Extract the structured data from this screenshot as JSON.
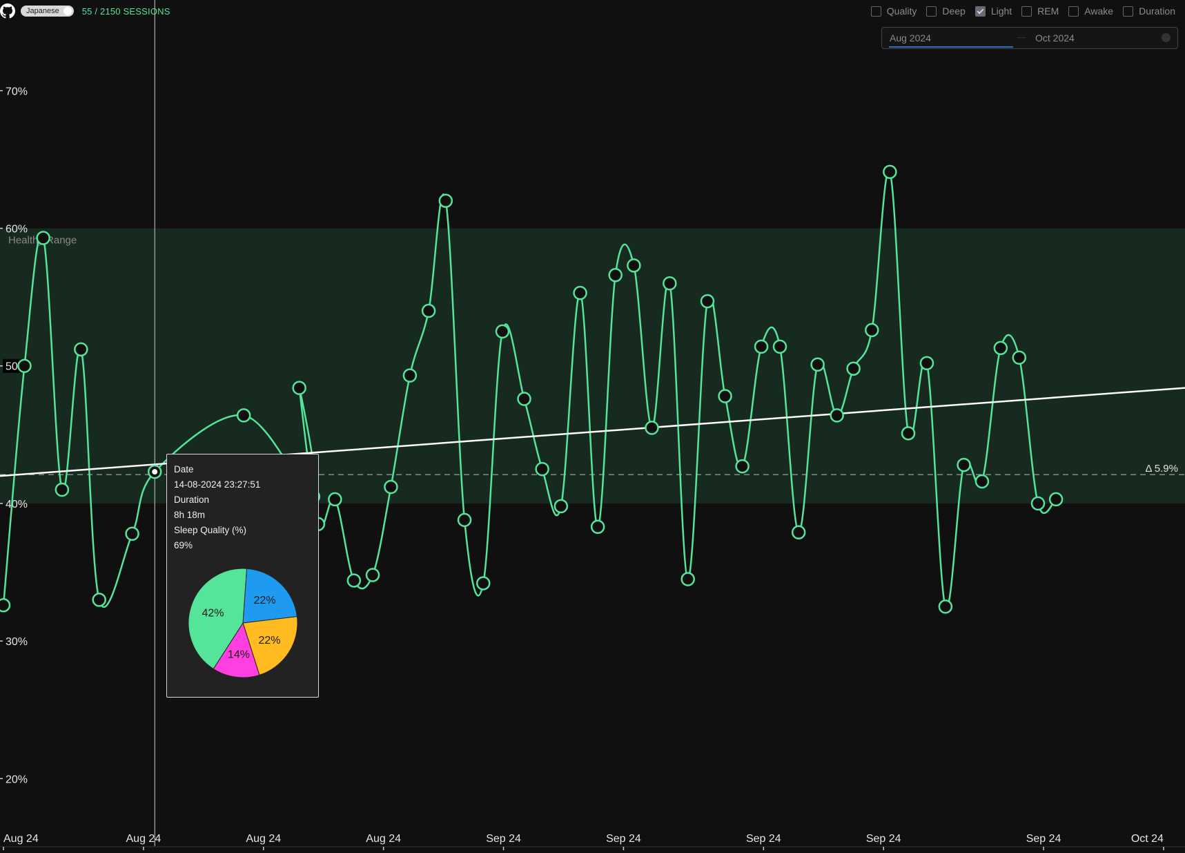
{
  "header": {
    "language_toggle": "Japanese",
    "sessions_label": "55 / 2150 SESSIONS"
  },
  "filters": [
    {
      "label": "Quality",
      "checked": false
    },
    {
      "label": "Deep",
      "checked": false
    },
    {
      "label": "Light",
      "checked": true
    },
    {
      "label": "REM",
      "checked": false
    },
    {
      "label": "Awake",
      "checked": false
    },
    {
      "label": "Duration",
      "checked": false
    }
  ],
  "date_range": {
    "from": "Aug 2024",
    "to": "Oct 2024"
  },
  "tooltip": {
    "date_label": "Date",
    "date_value": "14-08-2024 23:27:51",
    "duration_label": "Duration",
    "duration_value": "8h 18m",
    "quality_label": "Sleep Quality (%)",
    "quality_value": "69%",
    "pie": [
      {
        "value": 22,
        "label": "22%",
        "color": "#1e9bf0"
      },
      {
        "value": 22,
        "label": "22%",
        "color": "#ffbb1f"
      },
      {
        "value": 14,
        "label": "14%",
        "color": "#ff3fe0"
      },
      {
        "value": 42,
        "label": "42%",
        "color": "#55e59a"
      }
    ]
  },
  "chart_data": {
    "type": "line",
    "ylim": [
      16.5,
      78
    ],
    "y_ticks": [
      20,
      30,
      40,
      50,
      60,
      70
    ],
    "y_tick_labels": [
      "20%",
      "30%",
      "40%",
      "50%",
      "60%",
      "70%"
    ],
    "x_ticks": [
      {
        "index": 0,
        "label": "Aug 24"
      },
      {
        "index": 7,
        "label": "Aug 24"
      },
      {
        "index": 13,
        "label": "Aug 24"
      },
      {
        "index": 19,
        "label": "Aug 24"
      },
      {
        "index": 25,
        "label": "Sep 24"
      },
      {
        "index": 31,
        "label": "Sep 24"
      },
      {
        "index": 38,
        "label": "Sep 24"
      },
      {
        "index": 44,
        "label": "Sep 24"
      },
      {
        "index": 52,
        "label": "Sep 24"
      },
      {
        "index": 58,
        "label": "Oct 24"
      }
    ],
    "healthy_range": {
      "label": "Healthy Range",
      "min": 40,
      "max": 60
    },
    "series": [
      {
        "color": "#55e59a",
        "values": [
          32.6,
          50.0,
          59.3,
          41.0,
          51.2,
          33.0,
          37.8,
          42.3,
          46.4,
          40.5,
          48.4,
          38.5,
          40.3,
          34.4,
          34.8,
          41.2,
          49.3,
          54.0,
          62.0,
          38.8,
          34.2,
          52.5,
          47.6,
          42.5,
          39.8,
          55.3,
          38.3,
          56.6,
          57.3,
          45.5,
          56.0,
          34.5,
          54.7,
          47.8,
          42.7,
          51.4,
          51.4,
          37.9,
          50.1,
          46.4,
          49.8,
          52.6,
          64.1,
          45.1,
          50.2,
          32.5,
          42.8,
          41.6,
          51.3,
          50.6,
          40.0,
          40.3
        ]
      }
    ],
    "x_positions": [
      0,
      1.12,
      2.12,
      3.12,
      4.13,
      5.1,
      6.86,
      8.06,
      12.8,
      16.5,
      15.76,
      16.76,
      17.66,
      18.67,
      19.67,
      20.64,
      21.65,
      22.65,
      23.56,
      24.56,
      25.56,
      26.58,
      27.74,
      28.7,
      29.7,
      30.72,
      31.66,
      32.6,
      33.58,
      34.54,
      35.49,
      36.46,
      37.5,
      38.44,
      39.36,
      40.37,
      41.36,
      42.36,
      43.37,
      44.4,
      45.28,
      46.26,
      47.22,
      48.2,
      49.19,
      50.18,
      51.16,
      52.13,
      53.12,
      54.11,
      55.11,
      56.07
    ],
    "trend": {
      "start": 42.0,
      "end": 48.4,
      "color": "#ffffff"
    },
    "baseline": 42.1,
    "delta_label": "Δ 5.9%",
    "cursor_index": 7
  }
}
